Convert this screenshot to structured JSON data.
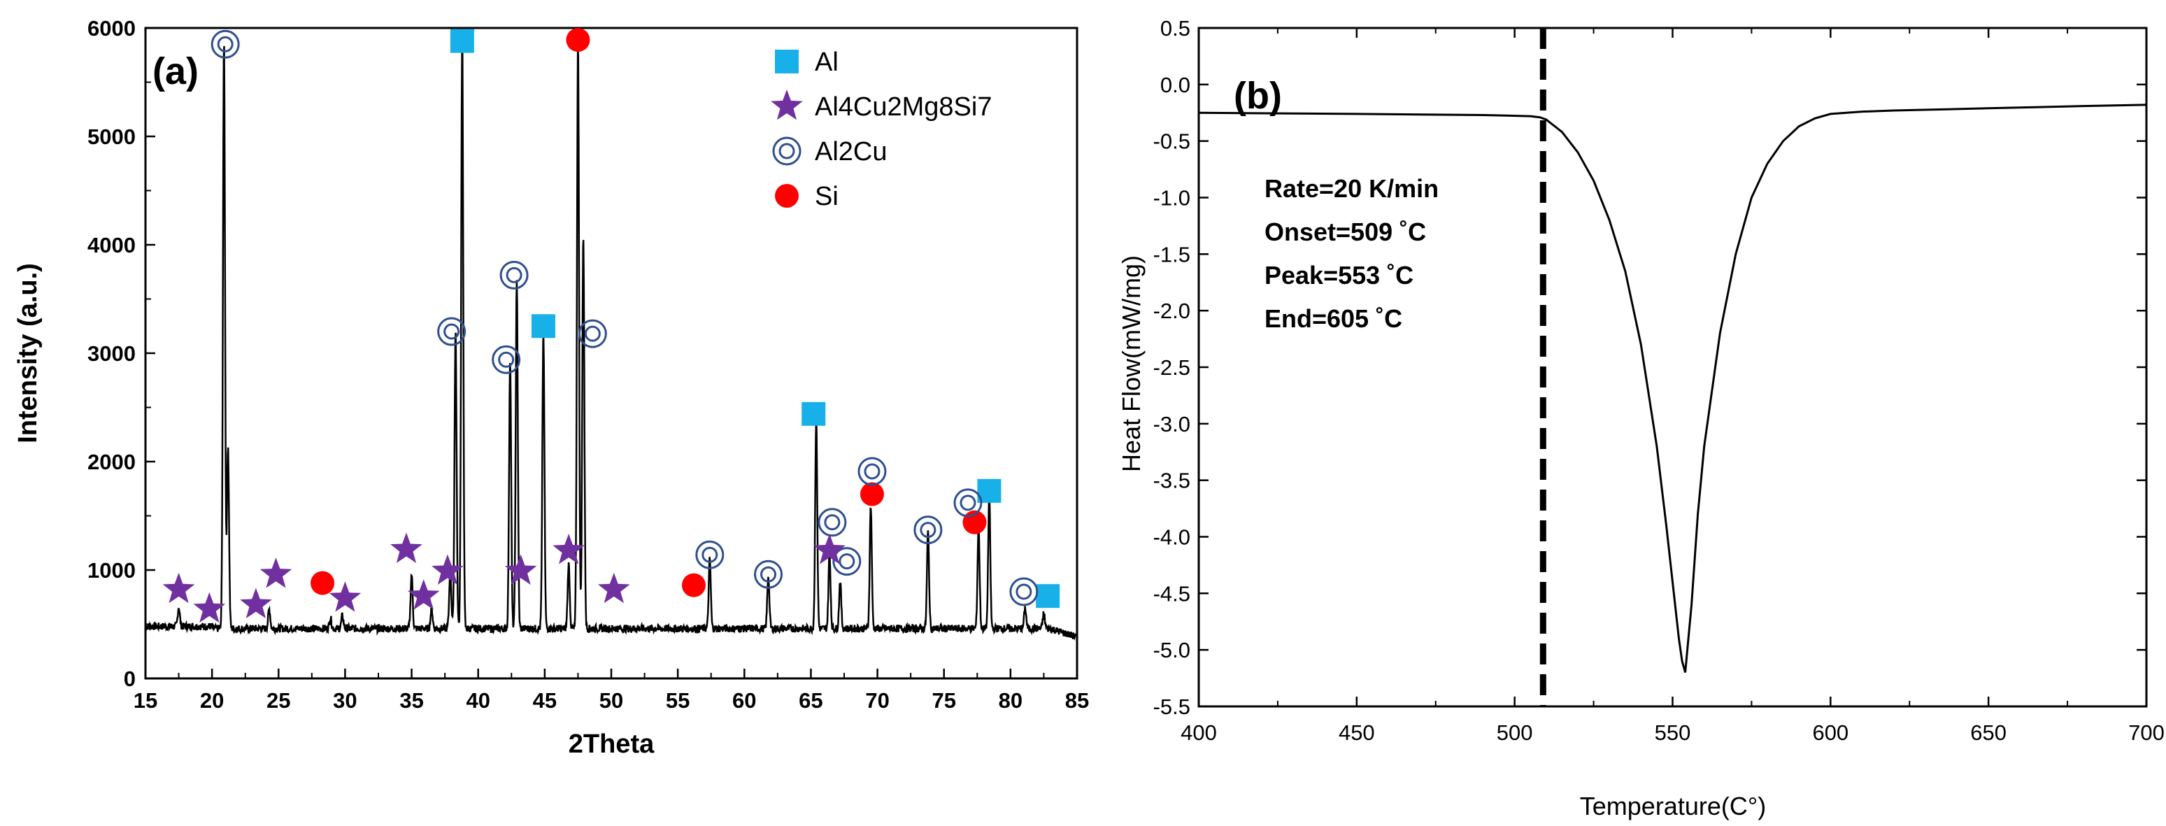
{
  "chart_data": [
    {
      "type": "line",
      "panel_label": "(a)",
      "xlabel": "2Theta",
      "ylabel": "Intensity (a.u.)",
      "xlim": [
        15,
        85
      ],
      "ylim": [
        0,
        6000
      ],
      "xticks": [
        15,
        20,
        25,
        30,
        35,
        40,
        45,
        50,
        55,
        60,
        65,
        70,
        75,
        80,
        85
      ],
      "yticks": [
        0,
        1000,
        2000,
        3000,
        4000,
        5000,
        6000
      ],
      "legend_position": "top-right",
      "legend": [
        {
          "label": "Al",
          "marker": "square",
          "color": "#17b0e8"
        },
        {
          "label": "Al4Cu2Mg8Si7",
          "marker": "star",
          "color": "#7030a0"
        },
        {
          "label": "Al2Cu",
          "marker": "double-circle",
          "color": "#2f4f8f"
        },
        {
          "label": "Si",
          "marker": "circle",
          "color": "#ff0000"
        }
      ],
      "baseline": 460,
      "peaks": [
        {
          "x": 17.5,
          "y": 640
        },
        {
          "x": 20.9,
          "y": 5900
        },
        {
          "x": 21.2,
          "y": 2150
        },
        {
          "x": 24.3,
          "y": 640
        },
        {
          "x": 28.9,
          "y": 560
        },
        {
          "x": 29.8,
          "y": 580
        },
        {
          "x": 35.0,
          "y": 960
        },
        {
          "x": 36.5,
          "y": 650
        },
        {
          "x": 37.9,
          "y": 1000
        },
        {
          "x": 38.3,
          "y": 3200
        },
        {
          "x": 38.8,
          "y": 5900
        },
        {
          "x": 42.4,
          "y": 2950
        },
        {
          "x": 42.9,
          "y": 3700
        },
        {
          "x": 44.9,
          "y": 3200
        },
        {
          "x": 46.8,
          "y": 1050
        },
        {
          "x": 47.5,
          "y": 5900
        },
        {
          "x": 47.9,
          "y": 4100
        },
        {
          "x": 57.4,
          "y": 1100
        },
        {
          "x": 61.8,
          "y": 950
        },
        {
          "x": 65.4,
          "y": 2400
        },
        {
          "x": 66.4,
          "y": 1150
        },
        {
          "x": 67.2,
          "y": 900
        },
        {
          "x": 69.5,
          "y": 1600
        },
        {
          "x": 73.8,
          "y": 1350
        },
        {
          "x": 77.6,
          "y": 1400
        },
        {
          "x": 78.4,
          "y": 1700
        },
        {
          "x": 81.1,
          "y": 650
        },
        {
          "x": 82.5,
          "y": 600
        }
      ],
      "markers": [
        {
          "type": "square",
          "x": 38.8,
          "y": 5880
        },
        {
          "type": "square",
          "x": 44.9,
          "y": 3250
        },
        {
          "type": "square",
          "x": 65.2,
          "y": 2440
        },
        {
          "type": "square",
          "x": 78.4,
          "y": 1730
        },
        {
          "type": "square",
          "x": 82.8,
          "y": 760
        },
        {
          "type": "circle",
          "x": 47.5,
          "y": 5890
        },
        {
          "type": "circle",
          "x": 28.3,
          "y": 880
        },
        {
          "type": "circle",
          "x": 56.2,
          "y": 860
        },
        {
          "type": "circle",
          "x": 69.6,
          "y": 1700
        },
        {
          "type": "circle",
          "x": 77.3,
          "y": 1440
        },
        {
          "type": "double-circle",
          "x": 21.0,
          "y": 5850
        },
        {
          "type": "double-circle",
          "x": 38.0,
          "y": 3200
        },
        {
          "type": "double-circle",
          "x": 42.7,
          "y": 3720
        },
        {
          "type": "double-circle",
          "x": 42.1,
          "y": 2940
        },
        {
          "type": "double-circle",
          "x": 48.6,
          "y": 3180
        },
        {
          "type": "double-circle",
          "x": 57.4,
          "y": 1140
        },
        {
          "type": "double-circle",
          "x": 61.8,
          "y": 960
        },
        {
          "type": "double-circle",
          "x": 66.6,
          "y": 1440
        },
        {
          "type": "double-circle",
          "x": 67.7,
          "y": 1080
        },
        {
          "type": "double-circle",
          "x": 69.6,
          "y": 1910
        },
        {
          "type": "double-circle",
          "x": 73.8,
          "y": 1370
        },
        {
          "type": "double-circle",
          "x": 76.8,
          "y": 1620
        },
        {
          "type": "double-circle",
          "x": 81.0,
          "y": 800
        },
        {
          "type": "star",
          "x": 17.5,
          "y": 820
        },
        {
          "type": "star",
          "x": 19.8,
          "y": 640
        },
        {
          "type": "star",
          "x": 23.3,
          "y": 680
        },
        {
          "type": "star",
          "x": 24.8,
          "y": 960
        },
        {
          "type": "star",
          "x": 30.0,
          "y": 740
        },
        {
          "type": "star",
          "x": 34.6,
          "y": 1190
        },
        {
          "type": "star",
          "x": 35.9,
          "y": 760
        },
        {
          "type": "star",
          "x": 37.7,
          "y": 990
        },
        {
          "type": "star",
          "x": 43.2,
          "y": 990
        },
        {
          "type": "star",
          "x": 46.8,
          "y": 1180
        },
        {
          "type": "star",
          "x": 50.2,
          "y": 820
        },
        {
          "type": "star",
          "x": 66.4,
          "y": 1180
        }
      ]
    },
    {
      "type": "line",
      "panel_label": "(b)",
      "xlabel": "Temperature(C°)",
      "ylabel": "Heat Flow(mW/mg)",
      "xlim": [
        400,
        700
      ],
      "ylim": [
        -5.5,
        0.5
      ],
      "xticks": [
        400,
        450,
        500,
        550,
        600,
        650,
        700
      ],
      "yticks": [
        0.5,
        0.0,
        -0.5,
        -1.0,
        -1.5,
        -2.0,
        -2.5,
        -3.0,
        -3.5,
        -4.0,
        -4.5,
        -5.0,
        -5.5
      ],
      "ytick_labels": [
        "0.5",
        "0.0",
        "-0.5",
        "-1.0",
        "-1.5",
        "-2.0",
        "-2.5",
        "-3.0",
        "-3.5",
        "-4.0",
        "-4.5",
        "-5.0",
        "-5.5"
      ],
      "series": [
        {
          "x": [
            400,
            450,
            490,
            505,
            508,
            510,
            515,
            520,
            525,
            530,
            535,
            540,
            545,
            548,
            550,
            552,
            553,
            554,
            556,
            558,
            560,
            565,
            570,
            575,
            580,
            585,
            590,
            595,
            600,
            610,
            620,
            650,
            680,
            700
          ],
          "y": [
            -0.25,
            -0.26,
            -0.27,
            -0.28,
            -0.29,
            -0.31,
            -0.42,
            -0.6,
            -0.85,
            -1.2,
            -1.65,
            -2.3,
            -3.2,
            -3.9,
            -4.4,
            -4.9,
            -5.1,
            -5.2,
            -4.6,
            -3.8,
            -3.2,
            -2.2,
            -1.5,
            -1.0,
            -0.7,
            -0.5,
            -0.37,
            -0.3,
            -0.26,
            -0.24,
            -0.23,
            -0.21,
            -0.19,
            -0.18
          ]
        }
      ],
      "vline": {
        "x": 509,
        "style": "dashed"
      },
      "annotations": [
        "Rate=20 K/min",
        "Onset=509 ˚C",
        "Peak=553 ˚C",
        "End=605 ˚C"
      ]
    }
  ]
}
